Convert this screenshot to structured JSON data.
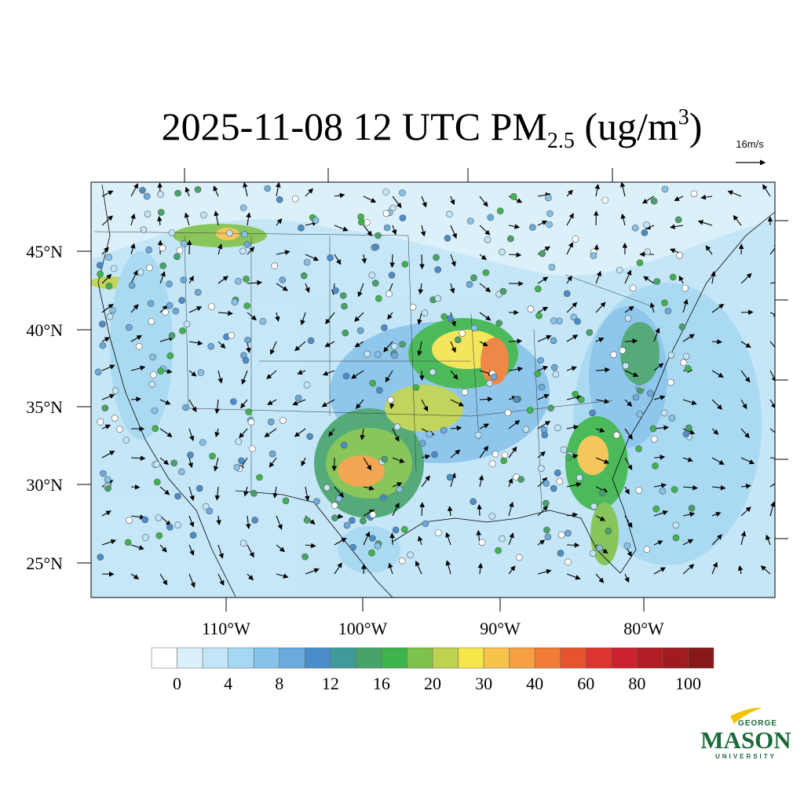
{
  "header": {
    "title_main": "2025-11-08 12 UTC PM",
    "title_sub": "2.5",
    "title_unit": " (ug/m",
    "title_sup": "3",
    "title_close": ")",
    "vector_ref": "16m/s"
  },
  "map": {
    "lat_labels": [
      "45°N",
      "40°N",
      "35°N",
      "30°N",
      "25°N"
    ],
    "lon_labels": [
      "110°W",
      "100°W",
      "90°W",
      "80°W"
    ]
  },
  "colorbar": {
    "colors": [
      "#ffffff",
      "#dcf0fa",
      "#c2e6f7",
      "#a5d8f2",
      "#86c3ea",
      "#6aaadc",
      "#4b8dca",
      "#3f9a9a",
      "#46a36a",
      "#3db54a",
      "#7fc24b",
      "#bdd24e",
      "#f7e54c",
      "#f8c24b",
      "#f6a043",
      "#f07c35",
      "#e7532f",
      "#dc3530",
      "#cc2230",
      "#b21c24",
      "#9e1b1f",
      "#871719"
    ],
    "ticks": [
      0,
      4,
      8,
      12,
      16,
      20,
      30,
      40,
      60,
      80,
      100
    ]
  },
  "logo": {
    "top": "GEORGE",
    "name": "MASON",
    "bottom": "UNIVERSITY"
  }
}
